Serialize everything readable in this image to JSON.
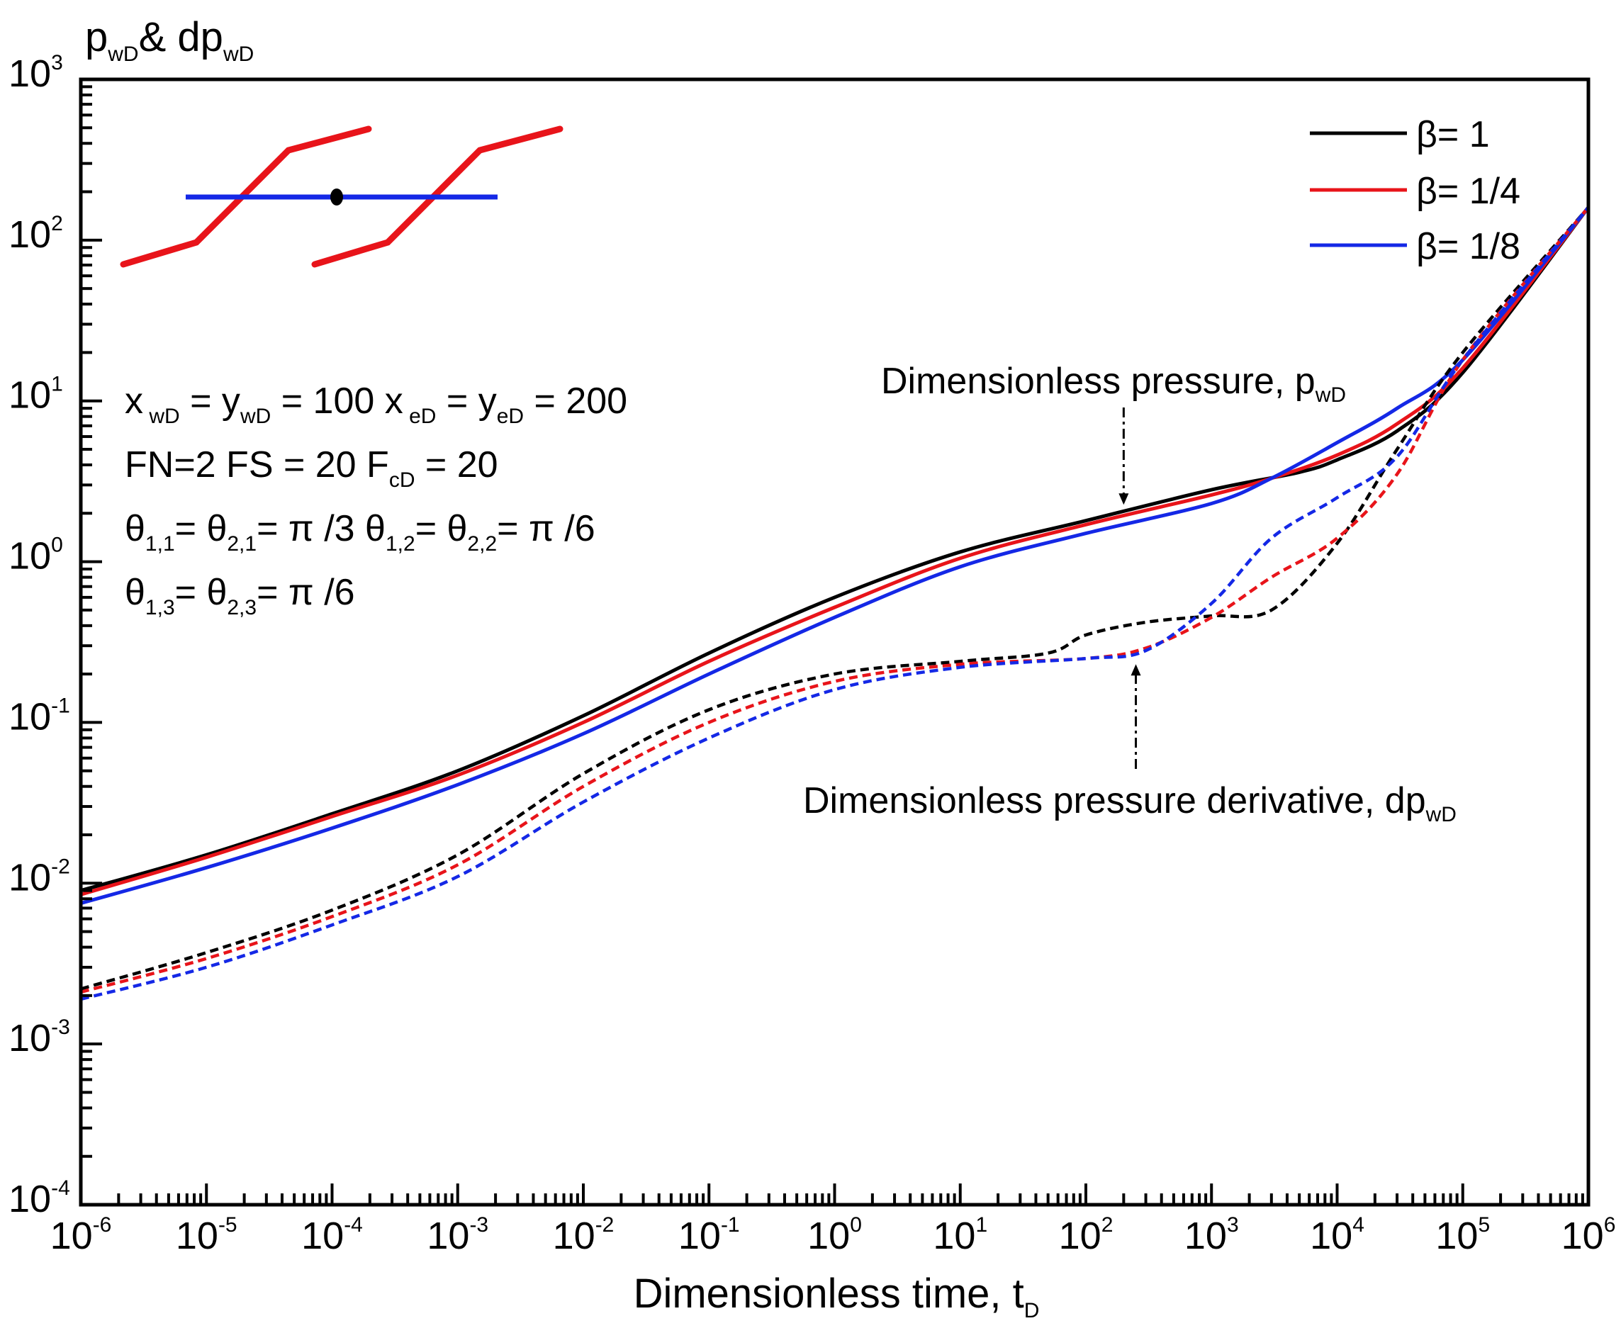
{
  "chart_data": {
    "type": "line",
    "scale": {
      "x": "log",
      "y": "log"
    },
    "xlim": [
      1e-06,
      1000000
    ],
    "ylim": [
      0.0001,
      1000
    ],
    "xlabel": {
      "main": "Dimensionless time, t",
      "sub": "D"
    },
    "ylabel": {
      "p": "p",
      "p_sub": "wD",
      "mid": "& dp",
      "dp_sub": "wD"
    },
    "xticks": [
      {
        "value": 1e-06,
        "base": "10",
        "exp": "-6"
      },
      {
        "value": 1e-05,
        "base": "10",
        "exp": "-5"
      },
      {
        "value": 0.0001,
        "base": "10",
        "exp": "-4"
      },
      {
        "value": 0.001,
        "base": "10",
        "exp": "-3"
      },
      {
        "value": 0.01,
        "base": "10",
        "exp": "-2"
      },
      {
        "value": 0.1,
        "base": "10",
        "exp": "-1"
      },
      {
        "value": 1,
        "base": "10",
        "exp": "0"
      },
      {
        "value": 10,
        "base": "10",
        "exp": "1"
      },
      {
        "value": 100,
        "base": "10",
        "exp": "2"
      },
      {
        "value": 1000,
        "base": "10",
        "exp": "3"
      },
      {
        "value": 10000,
        "base": "10",
        "exp": "4"
      },
      {
        "value": 100000,
        "base": "10",
        "exp": "5"
      },
      {
        "value": 1000000,
        "base": "10",
        "exp": "6"
      }
    ],
    "yticks": [
      {
        "value": 0.0001,
        "base": "10",
        "exp": "-4"
      },
      {
        "value": 0.001,
        "base": "10",
        "exp": "-3"
      },
      {
        "value": 0.01,
        "base": "10",
        "exp": "-2"
      },
      {
        "value": 0.1,
        "base": "10",
        "exp": "-1"
      },
      {
        "value": 1,
        "base": "10",
        "exp": "0"
      },
      {
        "value": 10,
        "base": "10",
        "exp": "1"
      },
      {
        "value": 100,
        "base": "10",
        "exp": "2"
      },
      {
        "value": 1000,
        "base": "10",
        "exp": "3"
      }
    ],
    "legend": {
      "position": "top-right",
      "entries": [
        {
          "label": "β= 1",
          "color": "#000000"
        },
        {
          "label": "β= 1/4",
          "color": "#e8141a"
        },
        {
          "label": "β= 1/8",
          "color": "#1428e6"
        }
      ]
    },
    "series": [
      {
        "name": "pwD β= 1",
        "color": "#000000",
        "style": "solid",
        "x": [
          1e-06,
          1e-05,
          0.0001,
          0.001,
          0.01,
          0.1,
          1,
          10,
          100,
          1000,
          5000,
          10000,
          30000,
          100000,
          1000000
        ],
        "y": [
          0.009,
          0.015,
          0.027,
          0.05,
          0.11,
          0.27,
          0.6,
          1.15,
          1.8,
          2.8,
          3.6,
          4.3,
          6.5,
          15,
          160
        ]
      },
      {
        "name": "pwD β= 1/4",
        "color": "#e8141a",
        "style": "solid",
        "x": [
          1e-06,
          1e-05,
          0.0001,
          0.001,
          0.01,
          0.1,
          1,
          10,
          100,
          1000,
          3000,
          10000,
          30000,
          100000,
          1000000
        ],
        "y": [
          0.0085,
          0.0145,
          0.026,
          0.047,
          0.1,
          0.24,
          0.52,
          1.05,
          1.7,
          2.6,
          3.3,
          4.6,
          7.2,
          16,
          160
        ]
      },
      {
        "name": "pwD β= 1/8",
        "color": "#1428e6",
        "style": "solid",
        "x": [
          1e-06,
          1e-05,
          0.0001,
          0.001,
          0.01,
          0.1,
          1,
          10,
          100,
          1000,
          3000,
          10000,
          30000,
          100000,
          1000000
        ],
        "y": [
          0.0075,
          0.0125,
          0.022,
          0.041,
          0.085,
          0.2,
          0.45,
          0.93,
          1.5,
          2.3,
          3.3,
          5.5,
          9,
          18,
          160
        ]
      },
      {
        "name": "dpwD β= 1",
        "color": "#000000",
        "style": "dashed",
        "x": [
          1e-06,
          1e-05,
          0.0001,
          0.001,
          0.01,
          0.1,
          1,
          10,
          50,
          100,
          300,
          1000,
          3000,
          10000,
          30000,
          100000,
          1000000
        ],
        "y": [
          0.0022,
          0.0037,
          0.0068,
          0.015,
          0.048,
          0.12,
          0.2,
          0.24,
          0.27,
          0.35,
          0.42,
          0.46,
          0.5,
          1.3,
          5,
          20,
          160
        ]
      },
      {
        "name": "dpwD β= 1/4",
        "color": "#e8141a",
        "style": "dashed",
        "x": [
          1e-06,
          1e-05,
          0.0001,
          0.001,
          0.01,
          0.1,
          1,
          10,
          100,
          300,
          1000,
          3000,
          10000,
          30000,
          100000,
          1000000
        ],
        "y": [
          0.0021,
          0.0034,
          0.0062,
          0.013,
          0.04,
          0.1,
          0.18,
          0.23,
          0.25,
          0.29,
          0.45,
          0.8,
          1.4,
          3.5,
          18,
          160
        ]
      },
      {
        "name": "dpwD β= 1/8",
        "color": "#1428e6",
        "style": "dashed",
        "x": [
          1e-06,
          1e-05,
          0.0001,
          0.001,
          0.01,
          0.1,
          1,
          10,
          100,
          300,
          1000,
          3000,
          10000,
          30000,
          100000,
          1000000
        ],
        "y": [
          0.0019,
          0.003,
          0.0055,
          0.011,
          0.032,
          0.08,
          0.16,
          0.22,
          0.25,
          0.28,
          0.55,
          1.4,
          2.5,
          4.5,
          18,
          160
        ]
      }
    ],
    "annotations": {
      "pressure": {
        "text": "Dimensionless pressure, p",
        "sub": "wD",
        "arrow_to": [
          200,
          2
        ]
      },
      "derivative": {
        "text": "Dimensionless pressure derivative, dp",
        "sub": "wD",
        "arrow_to": [
          250,
          0.26
        ]
      }
    },
    "parameters": {
      "line1": [
        {
          "t": "x"
        },
        {
          "t": " wD",
          "sub": true
        },
        {
          "t": " = y"
        },
        {
          "t": "wD",
          "sub": true
        },
        {
          "t": " = 100   x"
        },
        {
          "t": " eD",
          "sub": true
        },
        {
          "t": " = y"
        },
        {
          "t": "eD",
          "sub": true
        },
        {
          "t": " = 200"
        }
      ],
      "line2": [
        {
          "t": "FN=2    FS = 20   F"
        },
        {
          "t": "cD",
          "sub": true
        },
        {
          "t": " = 20"
        }
      ],
      "line3": [
        {
          "t": "θ"
        },
        {
          "t": "1,1",
          "sub": true
        },
        {
          "t": "= θ"
        },
        {
          "t": "2,1",
          "sub": true
        },
        {
          "t": "= π /3  θ"
        },
        {
          "t": "1,2",
          "sub": true
        },
        {
          "t": "= θ"
        },
        {
          "t": "2,2",
          "sub": true
        },
        {
          "t": "= π /6"
        }
      ],
      "line4": [
        {
          "t": "θ"
        },
        {
          "t": "1,3",
          "sub": true
        },
        {
          "t": "= θ"
        },
        {
          "t": "2,3",
          "sub": true
        },
        {
          "t": "= π /6"
        }
      ]
    },
    "schematic": {
      "well_color": "#1428e6",
      "fracture_color": "#e8141a",
      "point_color": "#000000"
    }
  }
}
